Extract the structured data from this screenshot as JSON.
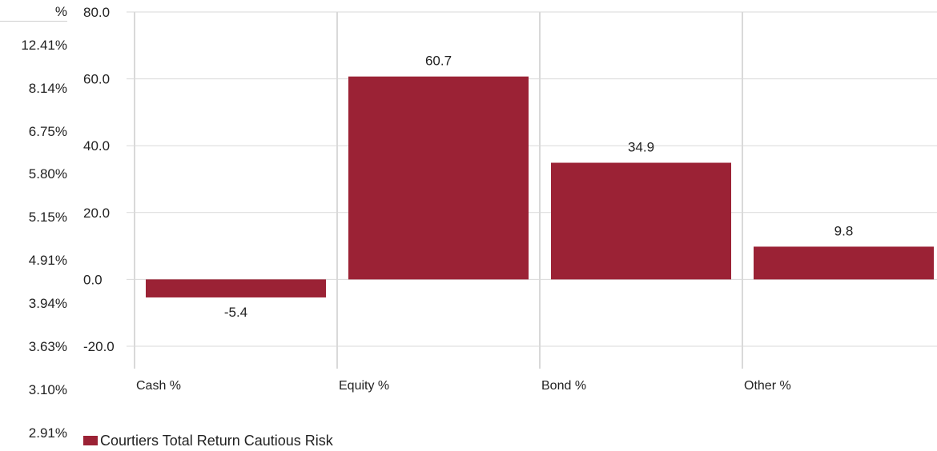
{
  "left_column": {
    "header": "%",
    "values": [
      "12.41%",
      "8.14%",
      "6.75%",
      "5.80%",
      "5.15%",
      "4.91%",
      "3.94%",
      "3.63%",
      "3.10%",
      "2.91%"
    ]
  },
  "chart_data": {
    "type": "bar",
    "categories": [
      "Cash %",
      "Equity %",
      "Bond %",
      "Other %"
    ],
    "series": [
      {
        "name": "Courtiers Total Return Cautious Risk",
        "values": [
          -5.4,
          60.7,
          34.9,
          9.8
        ],
        "color": "#9b2235"
      }
    ],
    "data_labels": [
      "-5.4",
      "60.7",
      "34.9",
      "9.8"
    ],
    "yticks": [
      "80.0",
      "60.0",
      "40.0",
      "20.0",
      "0.0",
      "-20.0"
    ],
    "ylim": [
      -20,
      80
    ],
    "grid": true,
    "legend_position": "bottom-left",
    "title": "",
    "xlabel": "",
    "ylabel": ""
  }
}
